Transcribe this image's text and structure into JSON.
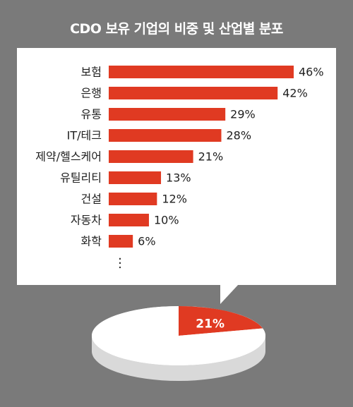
{
  "title": "CDO 보유 기업의 비중 및 산업별 분포",
  "chart_data": [
    {
      "type": "bar",
      "orientation": "horizontal",
      "categories": [
        "보험",
        "은행",
        "유통",
        "IT/테크",
        "제약/헬스케어",
        "유틸리티",
        "건설",
        "자동차",
        "화학"
      ],
      "values": [
        46,
        42,
        29,
        28,
        21,
        13,
        12,
        10,
        6
      ],
      "value_labels": [
        "46%",
        "42%",
        "29%",
        "28%",
        "21%",
        "13%",
        "12%",
        "10%",
        "6%"
      ],
      "continuation_marker": "⋮",
      "bar_color": "#e03a22",
      "xlim": [
        0,
        46
      ],
      "grid": false,
      "legend": "none"
    },
    {
      "type": "pie",
      "style": "3d",
      "values": [
        21,
        79
      ],
      "value_labels": [
        "21%",
        ""
      ],
      "colors": [
        "#e03a22",
        "#ffffff"
      ],
      "legend": "none"
    }
  ]
}
